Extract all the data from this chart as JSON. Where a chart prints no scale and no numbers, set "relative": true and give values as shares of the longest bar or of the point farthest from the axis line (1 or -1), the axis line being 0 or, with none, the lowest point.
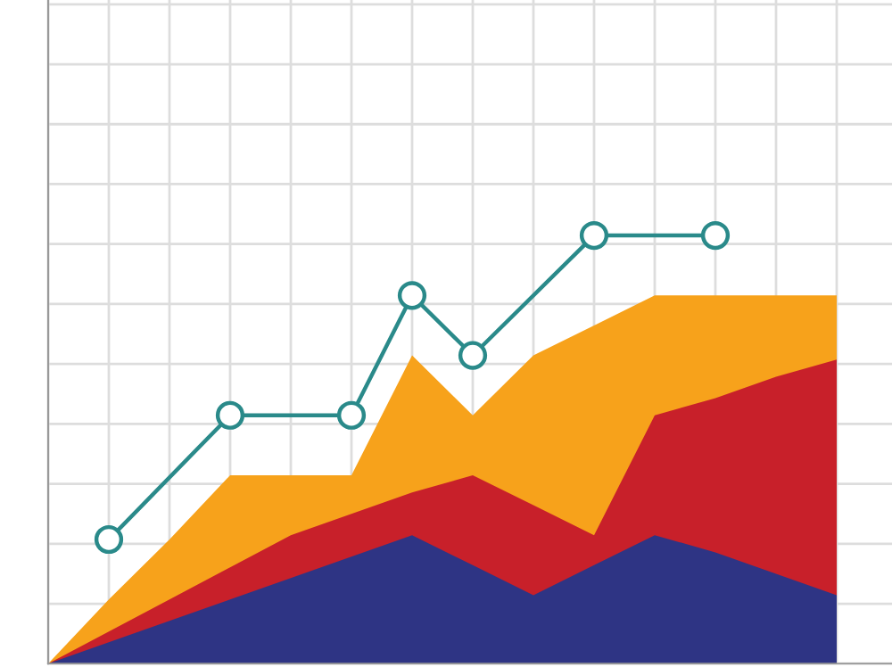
{
  "chart_data": {
    "type": "area",
    "relative": true,
    "grid": true,
    "categories": [
      null,
      null,
      null,
      null,
      null,
      null,
      null,
      null,
      null,
      null,
      null,
      null,
      null,
      null
    ],
    "series": [
      {
        "color": "#f7a21b",
        "values": [
          0,
          0.15,
          0.29,
          0.44,
          0.44,
          0.44,
          0.72,
          0.58,
          0.72,
          0.79,
          0.86,
          0.86,
          0.86,
          0.86
        ]
      },
      {
        "color": "#c8202a",
        "values": [
          0,
          0.075,
          0.15,
          0.225,
          0.3,
          0.35,
          0.4,
          0.44,
          0.37,
          0.3,
          0.58,
          0.62,
          0.67,
          0.71
        ]
      },
      {
        "color": "#2e3484",
        "values": [
          0,
          0.05,
          0.1,
          0.15,
          0.2,
          0.25,
          0.3,
          0.23,
          0.16,
          0.23,
          0.3,
          0.26,
          0.21,
          0.16
        ]
      },
      {
        "type": "line",
        "color": "#2a8a8a",
        "marker": "circle",
        "values": [
          null,
          0.29,
          null,
          0.58,
          null,
          0.58,
          0.86,
          0.72,
          null,
          1.0,
          null,
          1.0,
          null,
          null
        ]
      }
    ]
  }
}
